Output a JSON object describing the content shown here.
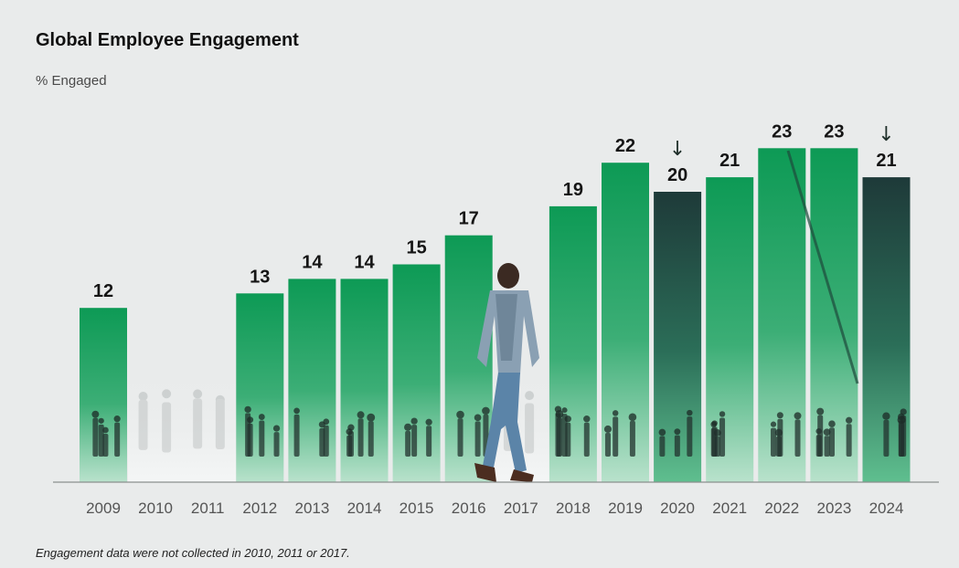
{
  "chart_data": {
    "type": "bar",
    "title": "Global Employee Engagement",
    "ylabel": "% Engaged",
    "categories": [
      "2009",
      "2010",
      "2011",
      "2012",
      "2013",
      "2014",
      "2015",
      "2016",
      "2017",
      "2018",
      "2019",
      "2020",
      "2021",
      "2022",
      "2023",
      "2024"
    ],
    "values": [
      12,
      null,
      null,
      13,
      14,
      14,
      15,
      17,
      null,
      19,
      22,
      20,
      21,
      23,
      23,
      21
    ],
    "value_labels": [
      "12",
      "",
      "",
      "13",
      "14",
      "14",
      "15",
      "17",
      "",
      "19",
      "22",
      "20",
      "21",
      "23",
      "23",
      "21"
    ],
    "down_arrow_years": [
      "2020",
      "2024"
    ],
    "down_arrow_glyph": "↓",
    "ylim": [
      0,
      23
    ],
    "footnote": "Engagement data were not collected in 2010, 2011 or 2017.",
    "colors": {
      "bar_green": "#0e9a55",
      "bar_green_light": "#a8dcc0",
      "bar_dark": "#1d3b3a",
      "axis": "#8a8f8e"
    }
  }
}
